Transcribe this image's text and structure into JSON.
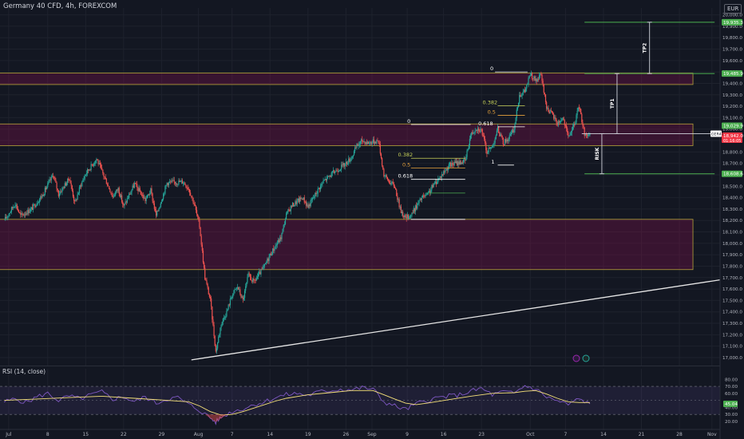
{
  "header": {
    "title": "Germany 40 CFD, 4h, FOREXCOM",
    "currency": "EUR"
  },
  "rsi_title": "RSI (14, close)",
  "price_axis": {
    "ticks": [
      "17,000.0",
      "17,100.0",
      "17,200.0",
      "17,300.0",
      "17,400.0",
      "17,500.0",
      "17,600.0",
      "17,700.0",
      "17,800.0",
      "17,900.0",
      "18,000.0",
      "18,100.0",
      "18,200.0",
      "18,300.0",
      "18,400.0",
      "18,500.0",
      "18,600.0",
      "18,700.0",
      "18,800.0",
      "18,900.0",
      "19,000.0",
      "19,100.0",
      "19,200.0",
      "19,300.0",
      "19,400.0",
      "19,500.0",
      "19,600.0",
      "19,700.0",
      "19,800.0",
      "19,900.0",
      "20,000.0"
    ],
    "tick_values": [
      17000,
      17100,
      17200,
      17300,
      17400,
      17500,
      17600,
      17700,
      17800,
      17900,
      18000,
      18100,
      18200,
      18300,
      18400,
      18500,
      18600,
      18700,
      18800,
      18900,
      19000,
      19100,
      19200,
      19300,
      19400,
      19500,
      19600,
      19700,
      19800,
      19900,
      20000
    ],
    "labels": [
      {
        "value": 19935.3,
        "text": "19,935.3",
        "color": "#4caf50"
      },
      {
        "value": 19485.9,
        "text": "19,485.9",
        "color": "#4caf50"
      },
      {
        "value": 19029.9,
        "text": "19,029.9",
        "color": "#4caf50"
      },
      {
        "value": 18942.0,
        "text": "18,942.0",
        "color": "#f23645"
      },
      {
        "value": 18608.6,
        "text": "18,608.6",
        "color": "#4caf50"
      }
    ],
    "symbol_badge": {
      "text": "GER40",
      "value": 18960
    },
    "last_price": {
      "value": 18942.0,
      "text": "18,942.0",
      "countdown": "01:16:05"
    }
  },
  "rsi_axis": {
    "ticks": [
      "80.00",
      "70.00",
      "60.00",
      "50.00",
      "40.00",
      "30.00",
      "20.00"
    ],
    "tick_values": [
      80,
      70,
      60,
      50,
      40,
      30,
      20
    ],
    "current": {
      "value": 45.04,
      "text": "45.04"
    }
  },
  "time_axis": {
    "labels": [
      {
        "t": 0.8,
        "text": "Jul"
      },
      {
        "t": 8,
        "text": "8"
      },
      {
        "t": 15,
        "text": "15"
      },
      {
        "t": 22,
        "text": "22"
      },
      {
        "t": 29,
        "text": "29"
      },
      {
        "t": 35.8,
        "text": "Aug"
      },
      {
        "t": 42,
        "text": "7"
      },
      {
        "t": 49,
        "text": "14"
      },
      {
        "t": 56,
        "text": "19"
      },
      {
        "t": 63,
        "text": "26"
      },
      {
        "t": 67.8,
        "text": "Sep"
      },
      {
        "t": 74.3,
        "text": "9"
      },
      {
        "t": 81,
        "text": "16"
      },
      {
        "t": 88,
        "text": "23"
      },
      {
        "t": 97,
        "text": "Oct"
      },
      {
        "t": 103.5,
        "text": "7"
      },
      {
        "t": 110.5,
        "text": "14"
      },
      {
        "t": 117.5,
        "text": "21"
      },
      {
        "t": 124.5,
        "text": "28"
      },
      {
        "t": 130.5,
        "text": "Nov"
      }
    ]
  },
  "annotations": {
    "zones": [
      {
        "t0": -1,
        "t1": 127,
        "lo": 19390,
        "hi": 19490
      },
      {
        "t0": -1,
        "t1": 127,
        "lo": 18855,
        "hi": 19045
      },
      {
        "t0": -1,
        "t1": 127,
        "lo": 17770,
        "hi": 18210
      }
    ],
    "trendline": {
      "t0": 34.5,
      "p0": 16980,
      "t1": 132,
      "p1": 17680
    },
    "fib_sets": [
      {
        "levels": [
          {
            "label": "0",
            "value": 19500,
            "t_label": 89.6,
            "t0": 90.5,
            "t1": 96.5,
            "color": "#ffffff"
          },
          {
            "label": "0.382",
            "value": 19205,
            "t_label": 88.2,
            "t0": 91,
            "t1": 96,
            "color": "#c9d35a"
          },
          {
            "label": "0.5",
            "value": 19120,
            "t_label": 89.1,
            "t0": 91,
            "t1": 96,
            "color": "#e8a33d"
          },
          {
            "label": "0.618",
            "value": 19020,
            "t_label": 87.4,
            "t0": 91,
            "t1": 96,
            "color": "#ffffff"
          },
          {
            "label": "1",
            "value": 18685,
            "t_label": 89.8,
            "t0": 91,
            "t1": 94,
            "color": "#ffffff"
          }
        ]
      },
      {
        "levels": [
          {
            "label": "0",
            "value": 19040,
            "t_label": 74.3,
            "t0": 75,
            "t1": 86,
            "color": "#ffffff"
          },
          {
            "label": "0.382",
            "value": 18745,
            "t_label": 72.6,
            "t0": 75,
            "t1": 85,
            "color": "#c9d35a"
          },
          {
            "label": "0.5",
            "value": 18660,
            "t_label": 73.4,
            "t0": 75,
            "t1": 85,
            "color": "#e8a33d"
          },
          {
            "label": "0.618",
            "value": 18560,
            "t_label": 72.6,
            "t0": 75,
            "t1": 85,
            "color": "#ffffff"
          },
          {
            "label": "",
            "value": 18440,
            "t_label": 0,
            "t0": 78,
            "t1": 85,
            "color": "#4caf50"
          },
          {
            "label": "",
            "value": 18210,
            "t_label": 0,
            "t0": 75,
            "t1": 85,
            "color": "#ffffff"
          }
        ]
      }
    ],
    "targets": [
      {
        "value": 19935.3,
        "t0": 107,
        "t1": 131
      },
      {
        "value": 19485.9,
        "t0": 107,
        "t1": 131
      },
      {
        "value": 18608.6,
        "t0": 107,
        "t1": 131
      }
    ],
    "entry_line": {
      "value": 18960,
      "t0": 106.5,
      "t1": 131
    },
    "measures": [
      {
        "label": "TP2",
        "t": 119,
        "from": 19485.9,
        "to": 19935.3
      },
      {
        "label": "TP1",
        "t": 113,
        "from": 18960,
        "to": 19485.9
      },
      {
        "label": "RISK",
        "t": 110.2,
        "from": 18608.6,
        "to": 18960
      }
    ],
    "rsi_band": {
      "lo": 30,
      "hi": 70
    }
  },
  "chart_data": {
    "type": "candlestick",
    "title": "Germany 40 CFD, 4h, FOREXCOM",
    "x_unit": "days since Jul 1",
    "ylim": [
      16930,
      20060
    ],
    "colors": {
      "up": "#26a69a",
      "down": "#ef5350"
    },
    "path_points": [
      [
        0,
        18200
      ],
      [
        2,
        18350
      ],
      [
        3,
        18240
      ],
      [
        5,
        18300
      ],
      [
        7,
        18420
      ],
      [
        9,
        18600
      ],
      [
        10,
        18430
      ],
      [
        12,
        18570
      ],
      [
        13,
        18350
      ],
      [
        14,
        18500
      ],
      [
        15,
        18610
      ],
      [
        17,
        18740
      ],
      [
        18,
        18630
      ],
      [
        20,
        18410
      ],
      [
        21,
        18480
      ],
      [
        22,
        18320
      ],
      [
        24,
        18520
      ],
      [
        26,
        18380
      ],
      [
        27,
        18460
      ],
      [
        28,
        18240
      ],
      [
        30,
        18530
      ],
      [
        33,
        18540
      ],
      [
        34,
        18480
      ],
      [
        35,
        18350
      ],
      [
        36,
        18150
      ],
      [
        37,
        17700
      ],
      [
        38,
        17500
      ],
      [
        39,
        17050
      ],
      [
        40,
        17300
      ],
      [
        41,
        17400
      ],
      [
        42,
        17550
      ],
      [
        43,
        17620
      ],
      [
        44,
        17500
      ],
      [
        45,
        17720
      ],
      [
        46,
        17660
      ],
      [
        48,
        17800
      ],
      [
        49,
        17900
      ],
      [
        51,
        18050
      ],
      [
        52,
        18250
      ],
      [
        53,
        18330
      ],
      [
        55,
        18400
      ],
      [
        56,
        18320
      ],
      [
        58,
        18480
      ],
      [
        59,
        18550
      ],
      [
        61,
        18630
      ],
      [
        63,
        18700
      ],
      [
        64,
        18750
      ],
      [
        65,
        18850
      ],
      [
        66,
        18900
      ],
      [
        67,
        18880
      ],
      [
        69,
        18900
      ],
      [
        70,
        18600
      ],
      [
        71,
        18540
      ],
      [
        72,
        18500
      ],
      [
        73,
        18300
      ],
      [
        74,
        18220
      ],
      [
        75,
        18250
      ],
      [
        77,
        18400
      ],
      [
        78,
        18420
      ],
      [
        79,
        18500
      ],
      [
        81,
        18620
      ],
      [
        82,
        18680
      ],
      [
        83,
        18700
      ],
      [
        85,
        18720
      ],
      [
        86,
        18950
      ],
      [
        87,
        19010
      ],
      [
        88,
        18990
      ],
      [
        89,
        18800
      ],
      [
        90,
        18850
      ],
      [
        91,
        19000
      ],
      [
        92,
        18880
      ],
      [
        93,
        18920
      ],
      [
        94,
        19000
      ],
      [
        95,
        19300
      ],
      [
        96,
        19330
      ],
      [
        97,
        19480
      ],
      [
        98,
        19420
      ],
      [
        99,
        19470
      ],
      [
        100,
        19190
      ],
      [
        101,
        19130
      ],
      [
        102,
        19050
      ],
      [
        103,
        19100
      ],
      [
        104,
        18930
      ],
      [
        105,
        19020
      ],
      [
        106,
        19200
      ],
      [
        107,
        18960
      ],
      [
        108,
        18940
      ]
    ],
    "rsi_path": [
      [
        0,
        48
      ],
      [
        2,
        52
      ],
      [
        4,
        47
      ],
      [
        6,
        55
      ],
      [
        8,
        60
      ],
      [
        10,
        50
      ],
      [
        12,
        56
      ],
      [
        14,
        52
      ],
      [
        16,
        58
      ],
      [
        18,
        62
      ],
      [
        20,
        52
      ],
      [
        22,
        55
      ],
      [
        24,
        48
      ],
      [
        26,
        55
      ],
      [
        28,
        46
      ],
      [
        30,
        52
      ],
      [
        32,
        54
      ],
      [
        34,
        44
      ],
      [
        36,
        36
      ],
      [
        38,
        25
      ],
      [
        39,
        19
      ],
      [
        40,
        26
      ],
      [
        42,
        34
      ],
      [
        44,
        38
      ],
      [
        46,
        44
      ],
      [
        48,
        48
      ],
      [
        50,
        54
      ],
      [
        52,
        58
      ],
      [
        54,
        60
      ],
      [
        56,
        57
      ],
      [
        58,
        62
      ],
      [
        60,
        64
      ],
      [
        62,
        66
      ],
      [
        64,
        65
      ],
      [
        66,
        68
      ],
      [
        68,
        66
      ],
      [
        70,
        48
      ],
      [
        72,
        42
      ],
      [
        74,
        37
      ],
      [
        76,
        45
      ],
      [
        78,
        50
      ],
      [
        80,
        54
      ],
      [
        82,
        56
      ],
      [
        84,
        58
      ],
      [
        86,
        63
      ],
      [
        88,
        67
      ],
      [
        90,
        58
      ],
      [
        92,
        62
      ],
      [
        94,
        60
      ],
      [
        96,
        71
      ],
      [
        98,
        66
      ],
      [
        100,
        55
      ],
      [
        102,
        49
      ],
      [
        104,
        44
      ],
      [
        106,
        52
      ],
      [
        108,
        45
      ]
    ],
    "rsi_ma_path": [
      [
        0,
        50
      ],
      [
        6,
        52
      ],
      [
        12,
        54
      ],
      [
        18,
        56
      ],
      [
        24,
        53
      ],
      [
        30,
        50
      ],
      [
        34,
        48
      ],
      [
        36,
        42
      ],
      [
        38,
        34
      ],
      [
        40,
        29
      ],
      [
        42,
        30
      ],
      [
        44,
        34
      ],
      [
        46,
        39
      ],
      [
        48,
        44
      ],
      [
        50,
        49
      ],
      [
        52,
        53
      ],
      [
        56,
        58
      ],
      [
        60,
        61
      ],
      [
        64,
        64
      ],
      [
        68,
        64
      ],
      [
        70,
        58
      ],
      [
        72,
        52
      ],
      [
        74,
        46
      ],
      [
        76,
        44
      ],
      [
        78,
        46
      ],
      [
        82,
        51
      ],
      [
        86,
        56
      ],
      [
        90,
        60
      ],
      [
        94,
        61
      ],
      [
        96,
        63
      ],
      [
        98,
        64
      ],
      [
        100,
        59
      ],
      [
        102,
        53
      ],
      [
        104,
        48
      ],
      [
        106,
        47
      ],
      [
        108,
        47
      ]
    ]
  }
}
